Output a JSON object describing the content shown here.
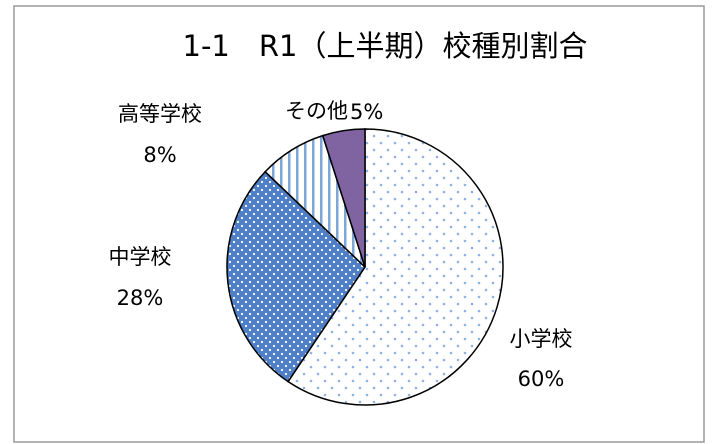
{
  "chart_data": {
    "type": "pie",
    "title": "1-1　R1（上半期）校種別割合",
    "categories": [
      "小学校",
      "中学校",
      "高等学校",
      "その他"
    ],
    "values": [
      60,
      28,
      8,
      5
    ],
    "value_labels": [
      "60%",
      "28%",
      "8%",
      "5%"
    ],
    "colors": [
      "#8fb4e3",
      "#4f7fc6",
      "#7fa6d9",
      "#8064a2"
    ]
  }
}
